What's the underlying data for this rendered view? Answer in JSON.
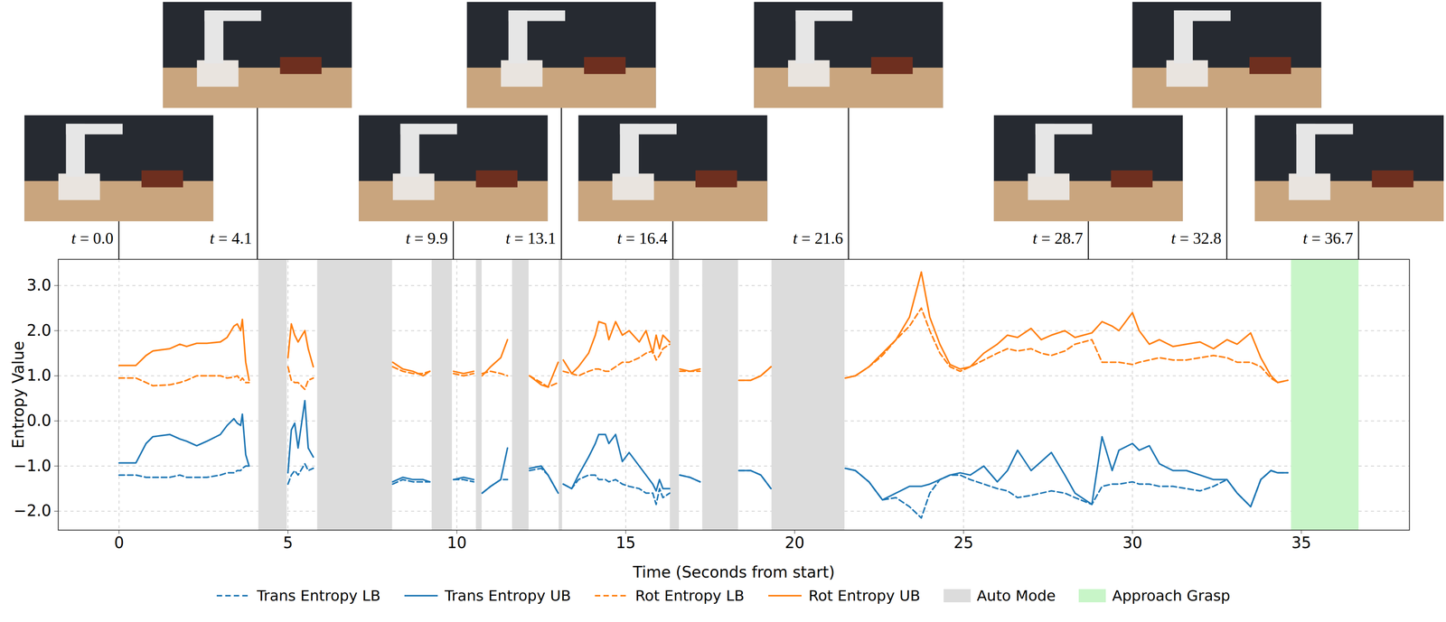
{
  "chart_data": {
    "type": "line",
    "x_label": "Time (Seconds from start)",
    "y_label": "Entropy Value",
    "xlim": [
      -1.8,
      38.2
    ],
    "ylim": [
      -2.42,
      3.58
    ],
    "xticks": [
      0,
      5,
      10,
      15,
      20,
      25,
      30,
      35
    ],
    "yticks": [
      -2,
      -1,
      0,
      1,
      2,
      3
    ],
    "grid": true,
    "legend": "bottom",
    "x": [
      0,
      0.5,
      0.8,
      1.0,
      1.5,
      1.8,
      2.0,
      2.3,
      2.6,
      3.0,
      3.2,
      3.4,
      3.5,
      3.6,
      3.65,
      3.75,
      3.85,
      4.5,
      5.0,
      5.1,
      5.2,
      5.3,
      5.5,
      5.6,
      5.75,
      7.0,
      8.1,
      8.4,
      8.7,
      9.0,
      9.2,
      9.5,
      9.9,
      10.2,
      10.5,
      10.65,
      10.75,
      11.0,
      11.3,
      11.5,
      11.9,
      12.15,
      12.5,
      12.7,
      13.0,
      13.07,
      13.15,
      13.4,
      13.6,
      13.9,
      14.1,
      14.2,
      14.4,
      14.5,
      14.7,
      14.9,
      15.1,
      15.4,
      15.6,
      15.8,
      15.9,
      16.0,
      16.1,
      16.3,
      16.45,
      16.6,
      16.9,
      17.2,
      17.8,
      18.35,
      18.7,
      19.0,
      19.3,
      20.4,
      21.5,
      21.8,
      22.2,
      22.6,
      23.0,
      23.4,
      23.75,
      24.0,
      24.3,
      24.6,
      24.9,
      25.2,
      25.6,
      26.0,
      26.3,
      26.6,
      27.0,
      27.3,
      27.6,
      28.0,
      28.3,
      28.8,
      29.1,
      29.4,
      29.6,
      30.0,
      30.2,
      30.5,
      30.8,
      31.2,
      31.6,
      32.0,
      32.4,
      32.8,
      33.1,
      33.5,
      33.8,
      34.1,
      34.3,
      34.6
    ],
    "series": [
      {
        "name": "Trans Entropy LB",
        "color": "#1f77b4",
        "line_style": "dashed",
        "values": [
          -1.2,
          -1.2,
          -1.25,
          -1.25,
          -1.25,
          -1.2,
          -1.25,
          -1.25,
          -1.25,
          -1.2,
          -1.15,
          -1.15,
          -1.1,
          -1.1,
          -1.05,
          -1.0,
          -1.0,
          null,
          -1.4,
          -1.2,
          -1.1,
          -1.2,
          -0.95,
          -1.1,
          -1.05,
          null,
          -1.4,
          -1.3,
          -1.35,
          -1.35,
          -1.35,
          null,
          -1.3,
          -1.3,
          -1.35,
          null,
          -1.6,
          -1.45,
          -1.3,
          -1.3,
          null,
          -1.1,
          -1.05,
          -1.2,
          -1.6,
          null,
          -1.4,
          -1.5,
          -1.3,
          -1.2,
          -1.2,
          -1.3,
          -1.3,
          -1.35,
          -1.3,
          -1.4,
          -1.45,
          -1.5,
          -1.6,
          -1.6,
          -1.85,
          -1.5,
          -1.7,
          -1.6,
          null,
          -1.2,
          -1.25,
          -1.35,
          null,
          -1.1,
          -1.1,
          -1.2,
          -1.5,
          null,
          -1.05,
          -1.1,
          -1.35,
          -1.75,
          -1.7,
          -1.9,
          -2.15,
          -1.6,
          -1.3,
          -1.2,
          -1.2,
          -1.3,
          -1.4,
          -1.5,
          -1.55,
          -1.7,
          -1.65,
          -1.6,
          -1.55,
          -1.6,
          -1.7,
          -1.85,
          -1.45,
          -1.4,
          -1.4,
          -1.35,
          -1.4,
          -1.4,
          -1.45,
          -1.45,
          -1.5,
          -1.55,
          -1.45,
          -1.3,
          -1.6,
          -1.9,
          -1.3,
          -1.1,
          -1.15,
          -1.15
        ]
      },
      {
        "name": "Trans Entropy UB",
        "color": "#1f77b4",
        "line_style": "solid",
        "values": [
          -0.93,
          -0.93,
          -0.5,
          -0.35,
          -0.3,
          -0.4,
          -0.45,
          -0.55,
          -0.45,
          -0.3,
          -0.1,
          0.05,
          -0.05,
          -0.1,
          0.15,
          -0.75,
          -1.0,
          null,
          -1.15,
          -0.2,
          -0.05,
          -0.6,
          0.45,
          -0.6,
          -0.8,
          null,
          -1.35,
          -1.25,
          -1.3,
          -1.3,
          -1.35,
          null,
          -1.3,
          -1.25,
          -1.3,
          null,
          -1.6,
          -1.45,
          -1.3,
          -0.6,
          null,
          -1.05,
          -1.0,
          -1.2,
          -1.6,
          null,
          -1.4,
          -1.5,
          -1.2,
          -0.8,
          -0.5,
          -0.3,
          -0.3,
          -0.5,
          -0.3,
          -0.9,
          -0.7,
          -1.0,
          -1.2,
          -1.4,
          -1.55,
          -1.3,
          -1.5,
          -1.5,
          null,
          -1.2,
          -1.25,
          -1.35,
          null,
          -1.1,
          -1.1,
          -1.2,
          -1.5,
          null,
          -1.05,
          -1.1,
          -1.35,
          -1.75,
          -1.6,
          -1.45,
          -1.45,
          -1.4,
          -1.3,
          -1.2,
          -1.15,
          -1.2,
          -1.0,
          -1.35,
          -1.1,
          -0.65,
          -1.1,
          -0.9,
          -0.7,
          -1.2,
          -1.6,
          -1.85,
          -0.35,
          -1.1,
          -0.65,
          -0.5,
          -0.65,
          -0.55,
          -0.95,
          -1.1,
          -1.1,
          -1.2,
          -1.3,
          -1.3,
          -1.6,
          -1.9,
          -1.3,
          -1.1,
          -1.15,
          -1.15
        ]
      },
      {
        "name": "Rot Entropy LB",
        "color": "#ff7f0e",
        "line_style": "dashed",
        "values": [
          0.95,
          0.95,
          0.85,
          0.78,
          0.8,
          0.85,
          0.9,
          1.0,
          1.0,
          1.0,
          0.95,
          0.97,
          1.0,
          0.9,
          0.95,
          0.85,
          0.85,
          null,
          1.2,
          0.9,
          0.85,
          0.85,
          0.7,
          0.9,
          0.95,
          null,
          1.2,
          1.1,
          1.05,
          1.05,
          1.1,
          null,
          1.05,
          1.0,
          1.05,
          null,
          1.05,
          1.1,
          1.05,
          1.0,
          null,
          1.0,
          0.85,
          0.75,
          0.85,
          null,
          1.1,
          1.05,
          1.0,
          1.1,
          1.15,
          1.15,
          1.1,
          1.1,
          1.2,
          1.3,
          1.3,
          1.4,
          1.5,
          1.55,
          1.35,
          1.45,
          1.6,
          1.7,
          null,
          1.1,
          1.1,
          1.1,
          null,
          0.9,
          0.9,
          1.0,
          1.2,
          null,
          0.95,
          1.0,
          1.2,
          1.45,
          1.8,
          2.1,
          2.5,
          2.0,
          1.5,
          1.2,
          1.1,
          1.2,
          1.35,
          1.5,
          1.6,
          1.55,
          1.6,
          1.5,
          1.45,
          1.55,
          1.7,
          1.8,
          1.3,
          1.3,
          1.3,
          1.25,
          1.3,
          1.35,
          1.4,
          1.35,
          1.35,
          1.4,
          1.45,
          1.4,
          1.3,
          1.3,
          1.2,
          0.95,
          0.85,
          0.9
        ]
      },
      {
        "name": "Rot Entropy UB",
        "color": "#ff7f0e",
        "line_style": "solid",
        "values": [
          1.23,
          1.23,
          1.45,
          1.55,
          1.6,
          1.7,
          1.65,
          1.72,
          1.72,
          1.75,
          1.85,
          2.1,
          2.15,
          2.0,
          2.25,
          1.3,
          0.9,
          null,
          1.4,
          2.15,
          1.9,
          1.75,
          2.0,
          1.6,
          1.2,
          null,
          1.3,
          1.15,
          1.1,
          1.0,
          1.1,
          null,
          1.1,
          1.05,
          1.1,
          null,
          1.0,
          1.2,
          1.4,
          1.8,
          null,
          1.0,
          0.8,
          0.75,
          1.3,
          null,
          1.35,
          1.05,
          1.2,
          1.5,
          1.9,
          2.2,
          2.15,
          1.8,
          2.2,
          1.9,
          2.0,
          1.75,
          2.0,
          1.5,
          1.9,
          1.6,
          1.9,
          1.75,
          null,
          1.15,
          1.1,
          1.15,
          null,
          0.9,
          0.9,
          1.0,
          1.2,
          null,
          0.95,
          1.0,
          1.2,
          1.5,
          1.8,
          2.3,
          3.3,
          2.3,
          1.7,
          1.25,
          1.15,
          1.2,
          1.5,
          1.7,
          1.9,
          1.85,
          2.05,
          1.8,
          1.9,
          2.0,
          1.85,
          1.95,
          2.2,
          2.1,
          2.0,
          2.4,
          2.0,
          1.7,
          1.8,
          1.65,
          1.7,
          1.75,
          1.6,
          1.8,
          1.7,
          1.95,
          1.4,
          1.0,
          0.85,
          0.9
        ]
      }
    ],
    "regions": [
      {
        "name": "Auto Mode",
        "color": "#dcdcdc",
        "spans": [
          [
            4.13,
            4.97
          ],
          [
            5.87,
            8.09
          ],
          [
            9.26,
            9.86
          ],
          [
            10.57,
            10.74
          ],
          [
            11.64,
            12.13
          ],
          [
            13.02,
            13.12
          ],
          [
            16.31,
            16.58
          ],
          [
            17.27,
            18.33
          ],
          [
            19.32,
            21.48
          ]
        ]
      },
      {
        "name": "Approach Grasp",
        "color": "#c8f5c8",
        "spans": [
          [
            34.7,
            36.7
          ]
        ]
      }
    ],
    "annotations": [
      {
        "x": 0.0,
        "label": "t = 0.0"
      },
      {
        "x": 4.1,
        "label": "t = 4.1"
      },
      {
        "x": 9.9,
        "label": "t = 9.9"
      },
      {
        "x": 13.1,
        "label": "t = 13.1"
      },
      {
        "x": 16.4,
        "label": "t = 16.4"
      },
      {
        "x": 21.6,
        "label": "t = 21.6"
      },
      {
        "x": 28.7,
        "label": "t = 28.7"
      },
      {
        "x": 32.8,
        "label": "t = 32.8"
      },
      {
        "x": 36.7,
        "label": "t = 36.7"
      }
    ]
  }
}
